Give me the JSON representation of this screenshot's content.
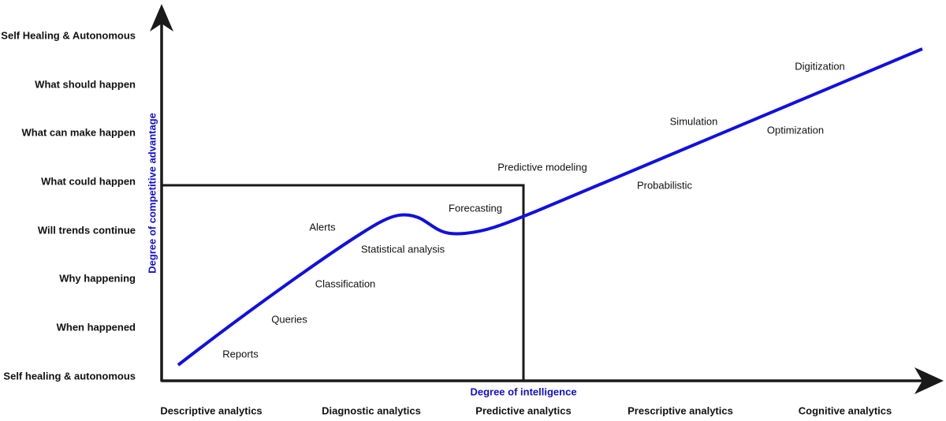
{
  "y_axis": {
    "title": "Degree of competitive advantage",
    "labels": [
      "Self Healing & Autonomous",
      "What should happen",
      "What can make happen",
      "What could happen",
      "Will trends continue",
      "Why happening",
      "When happened",
      "Self healing & autonomous"
    ]
  },
  "x_axis": {
    "title": "Degree of intelligence",
    "labels": [
      "Descriptive analytics",
      "Diagnostic analytics",
      "Predictive analytics",
      "Prescriptive analytics",
      "Cognitive analytics"
    ]
  },
  "curve_labels": [
    "Reports",
    "Queries",
    "Classification",
    "Alerts",
    "Statistical analysis",
    "Forecasting",
    "Predictive modeling",
    "Probabilistic",
    "Simulation",
    "Optimization",
    "Digitization"
  ]
}
